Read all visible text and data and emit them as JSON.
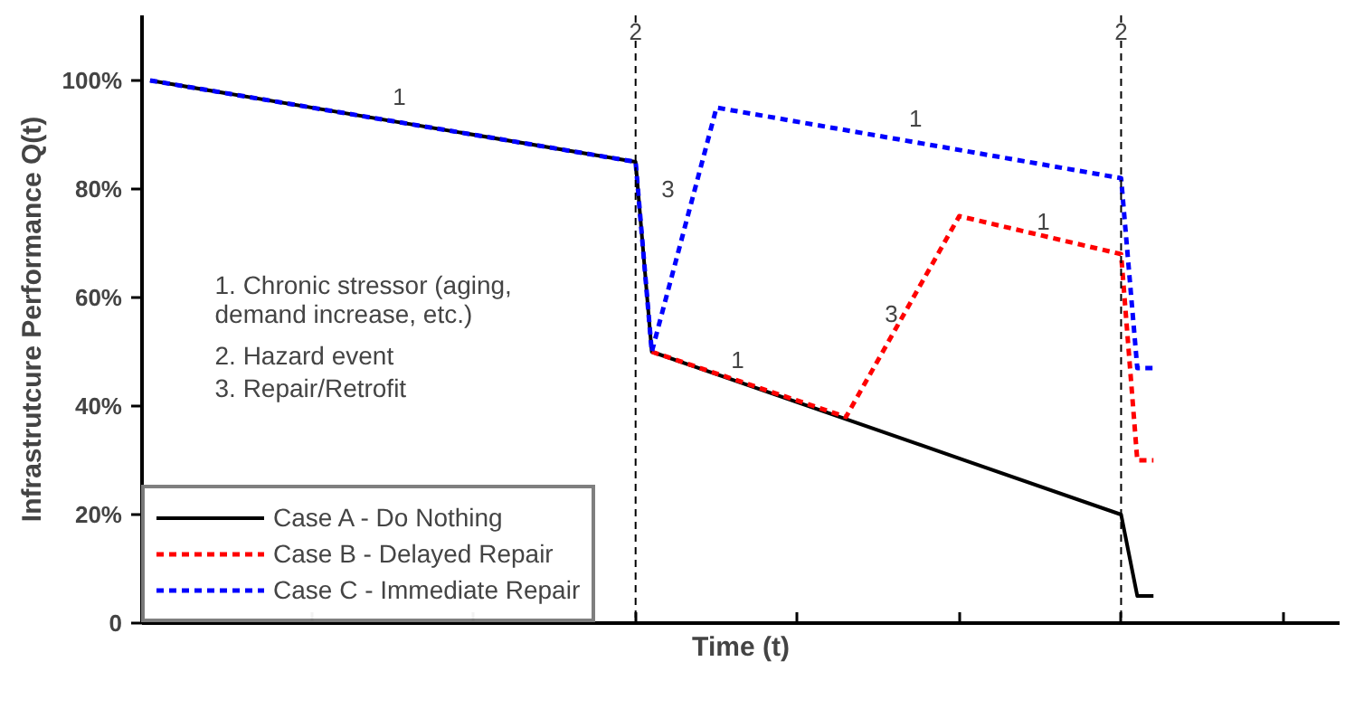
{
  "chart_data": {
    "type": "line",
    "xlabel": "Time (t)",
    "ylabel": "Infrastrutcure Performance Q(t)",
    "categories": [
      null,
      null,
      null,
      null,
      null,
      null,
      null,
      null,
      null,
      null,
      null,
      null,
      null,
      null,
      null,
      null,
      null,
      null,
      null,
      null,
      null,
      null,
      null,
      null,
      null,
      null,
      null,
      null,
      null,
      null,
      null,
      null,
      null,
      null,
      null,
      null,
      null,
      null,
      null,
      null,
      null,
      null,
      null,
      null,
      null,
      null,
      null,
      null,
      null,
      null,
      null,
      null,
      null,
      null,
      null,
      null,
      null,
      null,
      null,
      null,
      null,
      null,
      null,
      null,
      null,
      null,
      null,
      null,
      null,
      null,
      null,
      null,
      null,
      null
    ],
    "ylim": [
      0,
      112
    ],
    "yticks": [
      {
        "value": 0,
        "label": "0"
      },
      {
        "value": 20,
        "label": "20%"
      },
      {
        "value": 40,
        "label": "40%"
      },
      {
        "value": 60,
        "label": "60%"
      },
      {
        "value": 80,
        "label": "80%"
      },
      {
        "value": 100,
        "label": "100%"
      }
    ],
    "tick_labels": "y",
    "legend": "bottom left",
    "series": [
      {
        "name": "Case A - Do Nothing",
        "color": "#000000",
        "line_style": "solid",
        "values": [
          100,
          null,
          null,
          null,
          null,
          null,
          null,
          null,
          null,
          null,
          null,
          null,
          null,
          null,
          null,
          null,
          null,
          null,
          null,
          null,
          null,
          null,
          null,
          null,
          null,
          null,
          null,
          null,
          null,
          null,
          85,
          50,
          null,
          null,
          null,
          null,
          null,
          null,
          null,
          null,
          null,
          null,
          null,
          null,
          null,
          null,
          null,
          null,
          null,
          null,
          null,
          null,
          null,
          null,
          null,
          null,
          null,
          null,
          null,
          null,
          20,
          5,
          5,
          null,
          null,
          null,
          null,
          null,
          null,
          null,
          null,
          null,
          null,
          null
        ]
      },
      {
        "name": "Case B - Delayed Repair",
        "color": "#ff0000",
        "line_style": "dashed",
        "values": [
          null,
          null,
          null,
          null,
          null,
          null,
          null,
          null,
          null,
          null,
          null,
          null,
          null,
          null,
          null,
          null,
          null,
          null,
          null,
          null,
          null,
          null,
          null,
          null,
          null,
          null,
          null,
          null,
          null,
          null,
          null,
          50,
          null,
          null,
          null,
          null,
          null,
          null,
          null,
          null,
          null,
          null,
          null,
          38,
          null,
          null,
          null,
          null,
          null,
          null,
          75,
          null,
          null,
          null,
          null,
          null,
          null,
          null,
          null,
          null,
          68,
          30,
          30,
          null,
          null,
          null,
          null,
          null,
          null,
          null,
          null,
          null,
          null,
          null
        ]
      },
      {
        "name": "Case C - Immediate Repair",
        "color": "#0000ff",
        "line_style": "dashed",
        "values": [
          100,
          null,
          null,
          null,
          null,
          null,
          null,
          null,
          null,
          null,
          null,
          null,
          null,
          null,
          null,
          null,
          null,
          null,
          null,
          null,
          null,
          null,
          null,
          null,
          null,
          null,
          null,
          null,
          null,
          null,
          85,
          50,
          null,
          null,
          null,
          95,
          null,
          null,
          null,
          null,
          null,
          null,
          null,
          null,
          null,
          null,
          null,
          null,
          null,
          null,
          null,
          null,
          null,
          null,
          null,
          null,
          null,
          null,
          null,
          null,
          82,
          47,
          47,
          null,
          null,
          null,
          null,
          null,
          null,
          null,
          null,
          null,
          null,
          null
        ]
      }
    ],
    "annotations": [
      "1",
      "3",
      "1",
      "1",
      "3",
      "1",
      "1. Chronic stressor (aging,\n    demand increase, etc.)",
      "2. Hazard event",
      "3. Repair/Retrofit",
      "2",
      "2"
    ]
  }
}
